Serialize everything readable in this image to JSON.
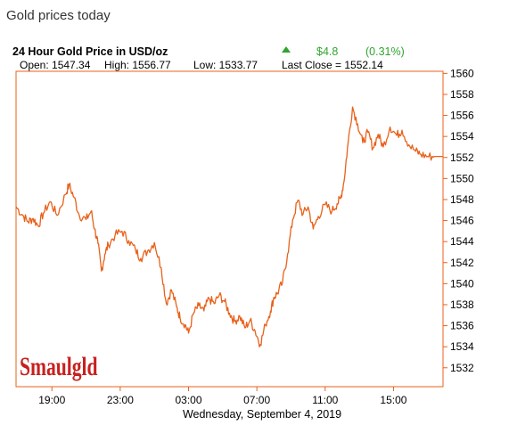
{
  "page": {
    "heading": "Gold prices today"
  },
  "chart_info": {
    "title": "24 Hour Gold Price in USD/oz",
    "change_value": "$4.8",
    "change_percent": "(0.31%)",
    "open_text": "Open: 1547.34",
    "high_text": "High: 1556.77",
    "low_text": "Low: 1533.77",
    "last_close_text": "Last Close = 1552.14",
    "date_label": "Wednesday, September  4, 2019",
    "logo_text": "Smaulgld",
    "colors": {
      "line": "#E8611A",
      "axis": "#E8611A",
      "positive": "#2EA52E",
      "logo": "#C8201E"
    }
  },
  "chart_data": {
    "type": "line",
    "title": "24 Hour Gold Price in USD/oz",
    "xlabel": "Wednesday, September  4, 2019",
    "ylabel": "",
    "x_ticks": [
      "19:00",
      "23:00",
      "03:00",
      "07:00",
      "11:00",
      "15:00"
    ],
    "x_tick_hours": [
      2,
      6,
      10,
      14,
      18,
      22
    ],
    "xlim": [
      -0.1,
      24.9
    ],
    "y_ticks": [
      1532,
      1534,
      1536,
      1538,
      1540,
      1542,
      1544,
      1546,
      1548,
      1550,
      1552,
      1554,
      1556,
      1558,
      1560
    ],
    "ylim": [
      1530.2,
      1560.2
    ],
    "grid": false,
    "series": [
      {
        "x": [
          -0.1,
          0.3,
          0.6,
          0.9,
          1.2,
          1.5,
          1.9,
          2.3,
          2.8,
          3.0,
          3.3,
          3.6,
          4.0,
          4.3,
          4.5,
          4.7,
          4.9,
          5.1,
          5.3,
          5.7,
          6.1,
          6.5,
          6.9,
          7.2,
          7.6,
          8.0,
          8.4,
          8.7,
          9.0,
          9.3,
          9.5,
          9.8,
          10.0,
          10.3,
          10.6,
          10.9,
          11.2,
          11.5,
          11.8,
          12.1,
          12.4,
          12.7,
          13.0,
          13.3,
          13.6,
          13.9,
          14.2,
          14.5,
          14.8,
          15.0,
          15.2,
          15.5,
          15.8,
          16.1,
          16.4,
          16.7,
          17.0,
          17.3,
          17.6,
          18.0,
          18.4,
          18.7,
          18.9,
          19.1,
          19.3,
          19.6,
          19.9,
          20.2,
          20.5,
          20.8,
          21.1,
          21.4,
          21.8,
          22.2,
          22.5,
          22.9,
          23.3,
          23.6,
          24.0,
          24.4,
          24.9
        ],
        "y": [
          1547.3,
          1546.5,
          1545.9,
          1546.2,
          1545.5,
          1546.7,
          1547.8,
          1546.5,
          1548.5,
          1549.4,
          1548.2,
          1546.5,
          1546.1,
          1546.9,
          1545.2,
          1543.8,
          1541.2,
          1542.8,
          1543.7,
          1544.6,
          1545.0,
          1544.1,
          1543.2,
          1542.4,
          1543.1,
          1543.9,
          1541.5,
          1538.1,
          1539.4,
          1537.8,
          1536.8,
          1536.1,
          1535.3,
          1537.2,
          1537.9,
          1537.4,
          1538.6,
          1538.1,
          1538.9,
          1538.3,
          1537.2,
          1536.4,
          1536.9,
          1535.8,
          1536.5,
          1535.5,
          1534.2,
          1536.1,
          1537.4,
          1538.7,
          1539.1,
          1540.1,
          1542.8,
          1546.1,
          1547.9,
          1546.6,
          1547.3,
          1545.2,
          1546.4,
          1547.5,
          1546.9,
          1547.6,
          1548.1,
          1549.7,
          1552.8,
          1556.8,
          1555.2,
          1553.4,
          1554.4,
          1552.9,
          1554.2,
          1553.0,
          1554.9,
          1554.1,
          1554.6,
          1553.2,
          1552.6,
          1552.3,
          1552.1,
          1552.1,
          1552.1
        ]
      }
    ]
  }
}
